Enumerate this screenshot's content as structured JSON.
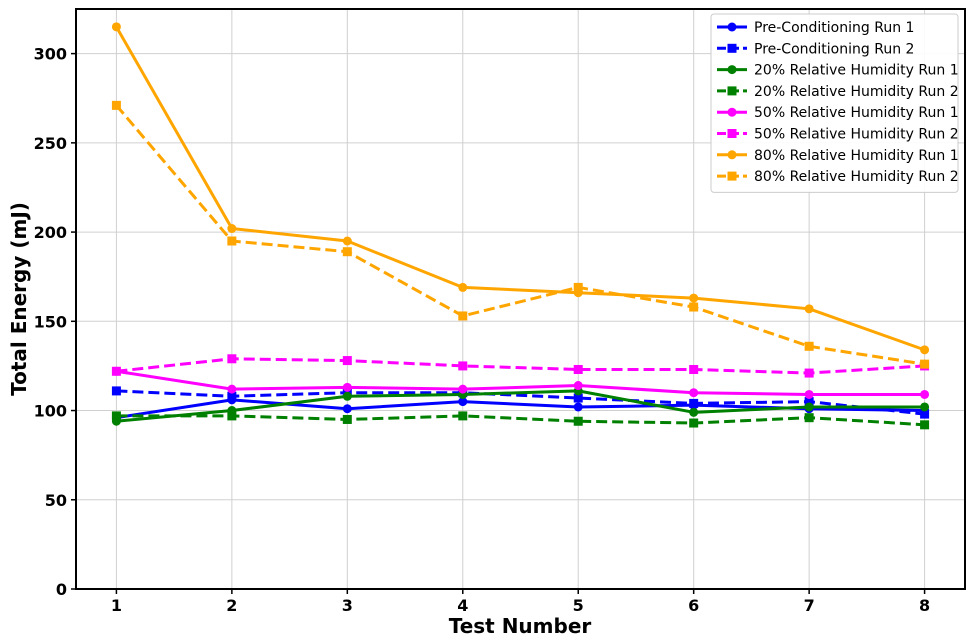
{
  "chart_data": {
    "type": "line",
    "title": "",
    "xlabel": "Test Number",
    "ylabel": "Total Energy (mJ)",
    "xlim": [
      0.65,
      8.35
    ],
    "ylim": [
      0,
      325
    ],
    "xticks": [
      1,
      2,
      3,
      4,
      5,
      6,
      7,
      8
    ],
    "yticks": [
      0,
      50,
      100,
      150,
      200,
      250,
      300
    ],
    "grid": true,
    "legend_position": "top-right",
    "x": [
      1,
      2,
      3,
      4,
      5,
      6,
      7,
      8
    ],
    "series": [
      {
        "name": "Pre-Conditioning Run 1",
        "color": "#0000ff",
        "dash": "solid",
        "marker": "circle",
        "values": [
          96,
          106,
          101,
          105,
          102,
          103,
          101,
          100
        ]
      },
      {
        "name": "Pre-Conditioning Run 2",
        "color": "#0000ff",
        "dash": "dashed",
        "marker": "square",
        "values": [
          111,
          108,
          110,
          110,
          107,
          104,
          105,
          98
        ]
      },
      {
        "name": "20% Relative Humidity Run 1",
        "color": "#008000",
        "dash": "solid",
        "marker": "circle",
        "values": [
          94,
          100,
          108,
          109,
          111,
          99,
          102,
          102
        ]
      },
      {
        "name": "20% Relative Humidity Run 2",
        "color": "#008000",
        "dash": "dashed",
        "marker": "square",
        "values": [
          97,
          97,
          95,
          97,
          94,
          93,
          96,
          92
        ]
      },
      {
        "name": "50% Relative Humidity Run 1",
        "color": "#ff00ff",
        "dash": "solid",
        "marker": "circle",
        "values": [
          122,
          112,
          113,
          112,
          114,
          110,
          109,
          109
        ]
      },
      {
        "name": "50% Relative Humidity Run 2",
        "color": "#ff00ff",
        "dash": "dashed",
        "marker": "square",
        "values": [
          122,
          129,
          128,
          125,
          123,
          123,
          121,
          125
        ]
      },
      {
        "name": "80% Relative Humidity Run 1",
        "color": "#ffa500",
        "dash": "solid",
        "marker": "circle",
        "values": [
          315,
          202,
          195,
          169,
          166,
          163,
          157,
          134
        ]
      },
      {
        "name": "80% Relative Humidity Run 2",
        "color": "#ffa500",
        "dash": "dashed",
        "marker": "square",
        "values": [
          271,
          195,
          189,
          153,
          169,
          158,
          136,
          126
        ]
      }
    ]
  }
}
